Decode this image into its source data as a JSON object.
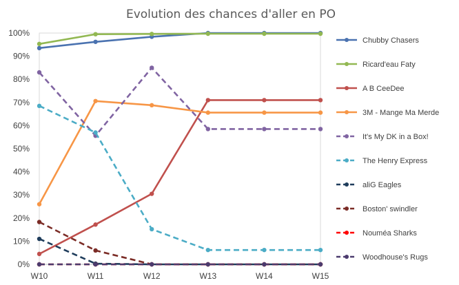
{
  "chart_data": {
    "type": "line",
    "title": "Evolution des chances d'aller en PO",
    "xlabel": "",
    "ylabel": "",
    "categories": [
      "W10",
      "W11",
      "W12",
      "W13",
      "W14",
      "W15"
    ],
    "y_ticks": [
      "0%",
      "10%",
      "20%",
      "30%",
      "40%",
      "50%",
      "60%",
      "70%",
      "80%",
      "90%",
      "100%"
    ],
    "ylim": [
      0,
      100
    ],
    "grid": false,
    "legend_position": "right",
    "series": [
      {
        "name": "Chubby Chasers",
        "color": "#4a72b0",
        "style": "solid",
        "values": [
          93.5,
          96.2,
          98.4,
          100,
          100,
          100
        ]
      },
      {
        "name": "Ricard'eau Faty",
        "color": "#92b852",
        "style": "solid",
        "values": [
          95.3,
          99.5,
          99.6,
          99.7,
          99.7,
          99.7
        ]
      },
      {
        "name": "A B CeeDee",
        "color": "#c0504d",
        "style": "solid",
        "values": [
          4.5,
          17.2,
          30.5,
          71.0,
          71.0,
          71.0
        ]
      },
      {
        "name": "3M - Mange Ma Merde",
        "color": "#f79646",
        "style": "solid",
        "values": [
          26.0,
          70.6,
          68.8,
          65.6,
          65.6,
          65.6
        ]
      },
      {
        "name": "It's My DK in a Box!",
        "color": "#8064a2",
        "style": "dashed",
        "values": [
          83.0,
          55.6,
          85.0,
          58.5,
          58.5,
          58.5
        ]
      },
      {
        "name": "The Henry Express",
        "color": "#4bacc6",
        "style": "dashed",
        "values": [
          68.5,
          57.0,
          15.2,
          6.2,
          6.2,
          6.2
        ]
      },
      {
        "name": "aliG Eagles",
        "color": "#1f3d5c",
        "style": "dashed",
        "values": [
          11.0,
          0.3,
          0,
          0,
          0,
          0
        ]
      },
      {
        "name": "Boston' swindler",
        "color": "#7b2c26",
        "style": "dashed",
        "values": [
          18.3,
          6.0,
          0,
          0,
          0,
          0
        ]
      },
      {
        "name": "Nouméa Sharks",
        "color": "#ff0000",
        "style": "dashed",
        "values": [
          0,
          0,
          0,
          0,
          0,
          0
        ]
      },
      {
        "name": "Woodhouse's Rugs",
        "color": "#4b3b6e",
        "style": "dashed",
        "values": [
          0,
          0,
          0,
          0,
          0,
          0
        ]
      }
    ]
  }
}
